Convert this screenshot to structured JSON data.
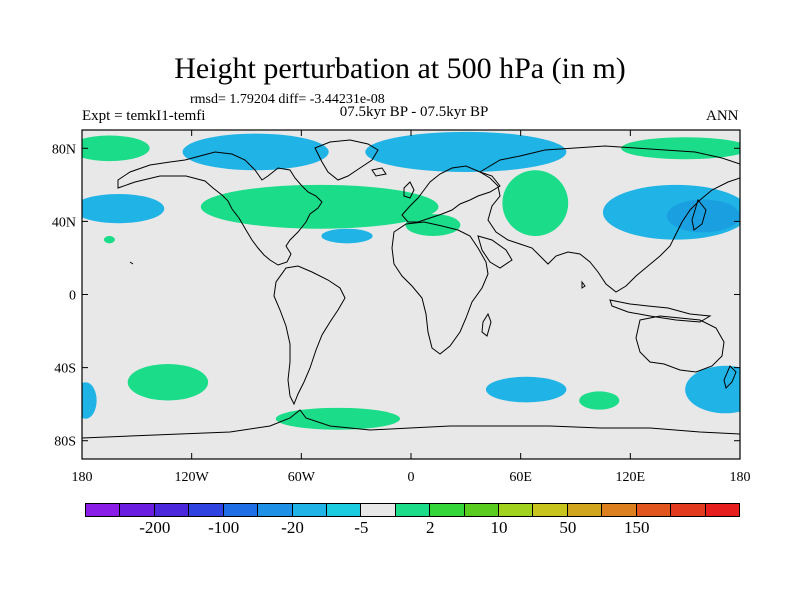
{
  "title": "Height perturbation at 500 hPa (in m)",
  "stats": "rmsd= 1.79204 diff= -3.44231e-08",
  "experiment": "Expt = temkI1-temfi",
  "period": "07.5kyr BP - 07.5kyr BP",
  "season": "ANN",
  "map": {
    "background_color": "#e8e8e8",
    "lat_ticks": [
      "80N",
      "40N",
      "0",
      "40S",
      "80S"
    ],
    "lat_values": [
      80,
      40,
      0,
      -40,
      -80
    ],
    "lon_ticks": [
      "180",
      "120W",
      "60W",
      "0",
      "60E",
      "120E",
      "180"
    ],
    "lon_values": [
      -180,
      -120,
      -60,
      0,
      60,
      120,
      180
    ],
    "lat_range": [
      -90,
      90
    ],
    "lon_range": [
      -180,
      180
    ],
    "anomaly_regions": [
      {
        "name": "north-atlantic-positive",
        "color": "#4fc92f",
        "lon": -55,
        "lat": 50,
        "rx": 40,
        "ry": 9
      },
      {
        "name": "north-atlantic-positive-outer",
        "color": "#1bdc88",
        "lon": -50,
        "lat": 48,
        "rx": 65,
        "ry": 12
      },
      {
        "name": "north-pacific-negative",
        "color": "#1fb3e6",
        "lon": -160,
        "lat": 47,
        "rx": 25,
        "ry": 8
      },
      {
        "name": "arctic-negative-west",
        "color": "#1fb3e6",
        "lon": -85,
        "lat": 78,
        "rx": 40,
        "ry": 10
      },
      {
        "name": "arctic-negative-east",
        "color": "#1fb3e6",
        "lon": 30,
        "lat": 78,
        "rx": 55,
        "ry": 11
      },
      {
        "name": "north-polar-positive-west",
        "color": "#1bdc88",
        "lon": -165,
        "lat": 80,
        "rx": 22,
        "ry": 7
      },
      {
        "name": "north-polar-positive-east",
        "color": "#1bdc88",
        "lon": 150,
        "lat": 80,
        "rx": 35,
        "ry": 6
      },
      {
        "name": "central-asia-positive",
        "color": "#1bdc88",
        "lon": 68,
        "lat": 50,
        "rx": 18,
        "ry": 18
      },
      {
        "name": "east-asia-negative",
        "color": "#1fb3e6",
        "lon": 145,
        "lat": 45,
        "rx": 40,
        "ry": 15
      },
      {
        "name": "east-asia-negative-core",
        "color": "#1aa0e0",
        "lon": 160,
        "lat": 43,
        "rx": 20,
        "ry": 9
      },
      {
        "name": "mediterranean-positive",
        "color": "#1bdc88",
        "lon": 12,
        "lat": 38,
        "rx": 15,
        "ry": 6
      },
      {
        "name": "atlantic-negative-small",
        "color": "#1fb3e6",
        "lon": -35,
        "lat": 32,
        "rx": 14,
        "ry": 4
      },
      {
        "name": "pacific-positive-small",
        "color": "#1bdc88",
        "lon": -165,
        "lat": 30,
        "rx": 3,
        "ry": 2
      },
      {
        "name": "south-pacific-positive",
        "color": "#1bdc88",
        "lon": -133,
        "lat": -48,
        "rx": 22,
        "ry": 10
      },
      {
        "name": "south-atlantic-positive",
        "color": "#1bdc88",
        "lon": -40,
        "lat": -68,
        "rx": 34,
        "ry": 6
      },
      {
        "name": "south-africa-negative",
        "color": "#1fb3e6",
        "lon": 63,
        "lat": -52,
        "rx": 22,
        "ry": 7
      },
      {
        "name": "south-indian-positive",
        "color": "#1bdc88",
        "lon": 103,
        "lat": -58,
        "rx": 11,
        "ry": 5
      },
      {
        "name": "southwest-pacific-negative",
        "color": "#1fb3e6",
        "lon": 172,
        "lat": -52,
        "rx": 22,
        "ry": 13
      },
      {
        "name": "dateline-south-negative",
        "color": "#1fb3e6",
        "lon": -178,
        "lat": -58,
        "rx": 6,
        "ry": 10
      }
    ]
  },
  "colorbar": {
    "colors": [
      "#8a1ee6",
      "#6a1ee0",
      "#4b28dc",
      "#2f43e0",
      "#1f6ee6",
      "#1e90e6",
      "#1fb3e6",
      "#1bcbe0",
      "#e8e8e8",
      "#1bdc88",
      "#35d63a",
      "#5acc1f",
      "#a0d21e",
      "#c8c41e",
      "#d2a51e",
      "#dc7f1e",
      "#e0561e",
      "#e23a1e",
      "#e61e1e"
    ],
    "labels": [
      "-200",
      "-100",
      "-20",
      "-5",
      "2",
      "10",
      "50",
      "150"
    ],
    "label_box_index": [
      1,
      3,
      5,
      7,
      9,
      11,
      13,
      15
    ]
  }
}
